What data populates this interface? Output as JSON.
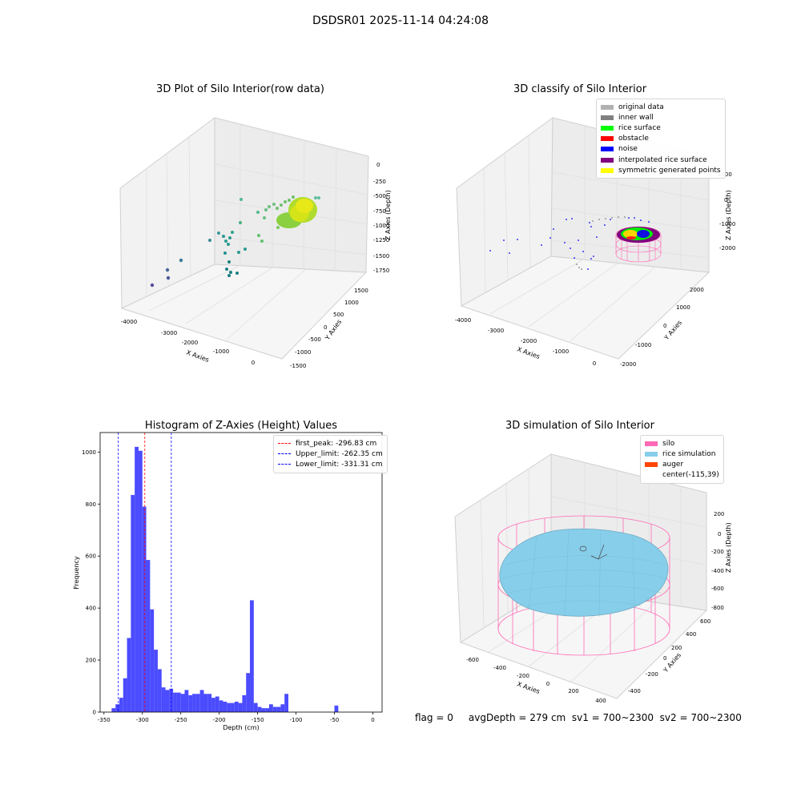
{
  "figure": {
    "suptitle": "DSDSR01 2025-11-14 04:24:08",
    "footer": "flag = 0     avgDepth = 279 cm  sv1 = 700~2300  sv2 = 700~2300"
  },
  "panel_raw": {
    "title": "3D Plot of Silo Interior(row data)",
    "x_label": "X Axies",
    "y_label": "Y Axies",
    "z_label": "Z Axies (Depth)",
    "x_ticks": [
      "-4000",
      "-3000",
      "-2000",
      "-1000",
      "0"
    ],
    "y_ticks": [
      "-1500",
      "-1000",
      "-500",
      "0",
      "500",
      "1000",
      "1500"
    ],
    "z_ticks": [
      "0",
      "-250",
      "-500",
      "-750",
      "-1000",
      "-1250",
      "-1500",
      "-1750"
    ]
  },
  "panel_classify": {
    "title": "3D classify of Silo Interior",
    "x_label": "X Axies",
    "y_label": "Y Axies",
    "z_label": "Z Axies (Depth)",
    "x_ticks": [
      "-4000",
      "-3000",
      "-2000",
      "-1000",
      "0"
    ],
    "y_ticks": [
      "-2000",
      "-1000",
      "0",
      "1000",
      "2000"
    ],
    "z_ticks": [
      "1000",
      "0",
      "-1000",
      "-2000"
    ],
    "legend": [
      {
        "label": "original data",
        "color": "#b2b2b2"
      },
      {
        "label": "inner wall",
        "color": "#808080"
      },
      {
        "label": "rice surface",
        "color": "#00ff00"
      },
      {
        "label": "obstacle",
        "color": "#ff0000"
      },
      {
        "label": "noise",
        "color": "#0000ff"
      },
      {
        "label": "interpolated rice surface",
        "color": "#800080"
      },
      {
        "label": "symmetric generated points",
        "color": "#ffff00"
      }
    ]
  },
  "panel_sim": {
    "title": "3D simulation of Silo Interior",
    "x_label": "X Axies",
    "y_label": "Y Axies",
    "z_label": "Z Axies (Depth)",
    "x_ticks": [
      "-600",
      "-400",
      "-200",
      "0",
      "200",
      "400"
    ],
    "y_ticks": [
      "-400",
      "-200",
      "0",
      "200",
      "400",
      "600"
    ],
    "z_ticks": [
      "200",
      "0",
      "-200",
      "-400",
      "-600",
      "-800"
    ],
    "legend": [
      {
        "label": "silo",
        "color": "#ff69b4"
      },
      {
        "label": "rice simulation",
        "color": "#87ceeb"
      },
      {
        "label": "auger",
        "color": "#ff4500"
      },
      {
        "label": "center(-115,39)",
        "color": ""
      }
    ]
  },
  "chart_data": {
    "type": "bar",
    "title": "Histogram of Z-Axies (Height) Values",
    "xlabel": "Depth (cm)",
    "ylabel": "Frequency",
    "xlim": [
      -355,
      12
    ],
    "ylim": [
      0,
      1075
    ],
    "x_ticks": [
      -350,
      -300,
      -250,
      -200,
      -150,
      -100,
      -50,
      0
    ],
    "y_ticks": [
      0,
      200,
      400,
      600,
      800,
      1000
    ],
    "bar_color": "#4b4bff",
    "bin_width": 5,
    "bins_left": [
      -350,
      -345,
      -340,
      -335,
      -330,
      -325,
      -320,
      -315,
      -310,
      -305,
      -300,
      -295,
      -290,
      -285,
      -280,
      -275,
      -270,
      -265,
      -260,
      -255,
      -250,
      -245,
      -240,
      -235,
      -230,
      -225,
      -220,
      -215,
      -210,
      -205,
      -200,
      -195,
      -190,
      -185,
      -180,
      -175,
      -170,
      -165,
      -160,
      -155,
      -150,
      -145,
      -140,
      -135,
      -130,
      -125,
      -120,
      -115,
      -110,
      -105,
      -100,
      -95,
      -90,
      -85,
      -80,
      -75,
      -70,
      -65,
      -60,
      -55,
      -50,
      -45,
      -40,
      -35,
      -30,
      -25,
      -20,
      -15,
      -10,
      -5,
      0
    ],
    "values": [
      0,
      0,
      15,
      30,
      55,
      130,
      285,
      835,
      1020,
      1005,
      790,
      585,
      395,
      240,
      165,
      95,
      85,
      90,
      75,
      75,
      70,
      85,
      65,
      70,
      70,
      85,
      70,
      70,
      55,
      60,
      45,
      40,
      35,
      35,
      40,
      35,
      65,
      150,
      430,
      35,
      20,
      15,
      15,
      30,
      20,
      20,
      30,
      70,
      0,
      0,
      0,
      0,
      0,
      0,
      0,
      0,
      0,
      0,
      0,
      0,
      25,
      0,
      0,
      0,
      0,
      0,
      0,
      0,
      0,
      0,
      0
    ],
    "vlines": [
      {
        "label": "first_peak: -296.83 cm",
        "x": -296.83,
        "color": "#ff0000"
      },
      {
        "label": "Upper_limit: -262.35 cm",
        "x": -262.35,
        "color": "#0000ff"
      },
      {
        "label": "Lower_limit: -331.31 cm",
        "x": -331.31,
        "color": "#0000ff"
      }
    ],
    "legend_position": "upper-right"
  }
}
